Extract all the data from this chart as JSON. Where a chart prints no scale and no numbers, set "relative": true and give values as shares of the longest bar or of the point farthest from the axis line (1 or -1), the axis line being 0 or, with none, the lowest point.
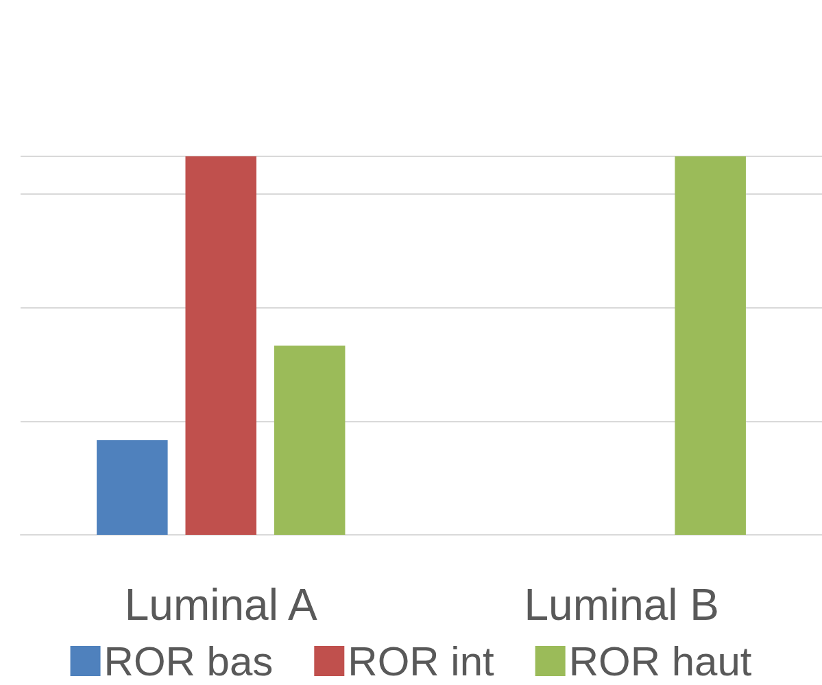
{
  "chart_data": {
    "type": "bar",
    "relative": true,
    "categories": [
      "Luminal A",
      "Luminal B"
    ],
    "series": [
      {
        "name": "ROR bas",
        "color": "#4f81bd",
        "values": [
          0.25,
          0
        ]
      },
      {
        "name": "ROR int",
        "color": "#c0504d",
        "values": [
          1,
          0
        ]
      },
      {
        "name": "ROR haut",
        "color": "#9bbb59",
        "values": [
          0.5,
          1
        ]
      }
    ],
    "grid": true,
    "legend": "bottom"
  }
}
